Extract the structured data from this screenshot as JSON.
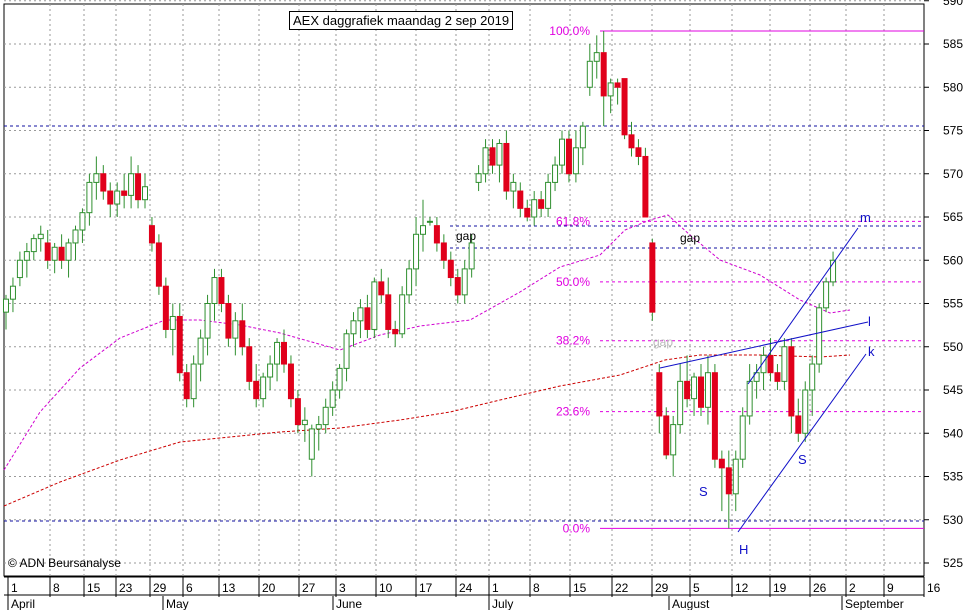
{
  "chart_data": {
    "type": "candlestick",
    "title": "AEX daggrafiek maandag 2 sep 2019",
    "copyright": "© ADN Beursanalyse",
    "ylim": [
      522,
      593
    ],
    "y_ticks": [
      525,
      530,
      535,
      540,
      545,
      550,
      555,
      560,
      565,
      570,
      575,
      580,
      585,
      590
    ],
    "x_ticks": [
      "1",
      "8",
      "15",
      "23",
      "29",
      "6",
      "13",
      "20",
      "27",
      "3",
      "10",
      "17",
      "24",
      "1",
      "8",
      "15",
      "22",
      "29",
      "5",
      "12",
      "19",
      "26",
      "2",
      "9",
      "16"
    ],
    "months": [
      "April",
      "May",
      "June",
      "July",
      "August",
      "September"
    ],
    "candles": [
      {
        "o": 554,
        "h": 556,
        "l": 552,
        "c": 555.5
      },
      {
        "o": 555.5,
        "h": 558,
        "l": 554,
        "c": 557
      },
      {
        "o": 558,
        "h": 561,
        "l": 557,
        "c": 560
      },
      {
        "o": 560,
        "h": 562,
        "l": 558,
        "c": 561
      },
      {
        "o": 561,
        "h": 563,
        "l": 560,
        "c": 562.5
      },
      {
        "o": 562.5,
        "h": 564,
        "l": 561,
        "c": 563
      },
      {
        "o": 562,
        "h": 563.5,
        "l": 559,
        "c": 560
      },
      {
        "o": 560,
        "h": 562,
        "l": 558.5,
        "c": 561.5
      },
      {
        "o": 561.5,
        "h": 563,
        "l": 559,
        "c": 560
      },
      {
        "o": 560,
        "h": 562.5,
        "l": 558,
        "c": 562
      },
      {
        "o": 562,
        "h": 564,
        "l": 560,
        "c": 563.5
      },
      {
        "o": 563.5,
        "h": 566,
        "l": 562,
        "c": 565.5
      },
      {
        "o": 565.5,
        "h": 570,
        "l": 564,
        "c": 569
      },
      {
        "o": 569,
        "h": 572,
        "l": 567,
        "c": 570
      },
      {
        "o": 570,
        "h": 571,
        "l": 567,
        "c": 568
      },
      {
        "o": 568,
        "h": 569,
        "l": 565,
        "c": 566.5
      },
      {
        "o": 566.5,
        "h": 569,
        "l": 565,
        "c": 568
      },
      {
        "o": 568,
        "h": 570,
        "l": 566,
        "c": 567.5
      },
      {
        "o": 567.5,
        "h": 572,
        "l": 566,
        "c": 570
      },
      {
        "o": 570,
        "h": 571,
        "l": 566,
        "c": 567
      },
      {
        "o": 567,
        "h": 570,
        "l": 566,
        "c": 568.5
      },
      {
        "o": 564,
        "h": 565,
        "l": 561,
        "c": 562
      },
      {
        "o": 562,
        "h": 563,
        "l": 556,
        "c": 557
      },
      {
        "o": 557,
        "h": 558,
        "l": 551,
        "c": 552
      },
      {
        "o": 552,
        "h": 555,
        "l": 549,
        "c": 553.5
      },
      {
        "o": 553.5,
        "h": 555,
        "l": 546,
        "c": 547
      },
      {
        "o": 547,
        "h": 548,
        "l": 543,
        "c": 544
      },
      {
        "o": 544,
        "h": 549,
        "l": 543,
        "c": 548
      },
      {
        "o": 548,
        "h": 552,
        "l": 546,
        "c": 551
      },
      {
        "o": 551,
        "h": 556,
        "l": 549,
        "c": 555
      },
      {
        "o": 555,
        "h": 559,
        "l": 553,
        "c": 558
      },
      {
        "o": 558,
        "h": 559,
        "l": 554,
        "c": 555
      },
      {
        "o": 555,
        "h": 556,
        "l": 550,
        "c": 551
      },
      {
        "o": 551,
        "h": 554,
        "l": 549,
        "c": 553
      },
      {
        "o": 553,
        "h": 555,
        "l": 549,
        "c": 550
      },
      {
        "o": 550,
        "h": 551,
        "l": 545,
        "c": 546
      },
      {
        "o": 546,
        "h": 548,
        "l": 543,
        "c": 544
      },
      {
        "o": 544,
        "h": 547,
        "l": 543,
        "c": 546.5
      },
      {
        "o": 546.5,
        "h": 549,
        "l": 545,
        "c": 548
      },
      {
        "o": 548,
        "h": 551,
        "l": 546,
        "c": 550.5
      },
      {
        "o": 550.5,
        "h": 552,
        "l": 547,
        "c": 548
      },
      {
        "o": 548,
        "h": 549,
        "l": 543,
        "c": 544
      },
      {
        "o": 544,
        "h": 545,
        "l": 540,
        "c": 541
      },
      {
        "o": 541,
        "h": 543,
        "l": 539,
        "c": 541.5
      },
      {
        "o": 537,
        "h": 541,
        "l": 535,
        "c": 540.5
      },
      {
        "o": 540.5,
        "h": 542,
        "l": 538,
        "c": 541
      },
      {
        "o": 541,
        "h": 544,
        "l": 540,
        "c": 543
      },
      {
        "o": 543,
        "h": 546,
        "l": 542,
        "c": 545
      },
      {
        "o": 545,
        "h": 548,
        "l": 544,
        "c": 547.5
      },
      {
        "o": 547.5,
        "h": 552,
        "l": 546,
        "c": 551.5
      },
      {
        "o": 551.5,
        "h": 554,
        "l": 550,
        "c": 553
      },
      {
        "o": 553,
        "h": 555.5,
        "l": 551,
        "c": 554.5
      },
      {
        "o": 554.5,
        "h": 556,
        "l": 551,
        "c": 552
      },
      {
        "o": 552,
        "h": 558,
        "l": 551,
        "c": 557.5
      },
      {
        "o": 557.5,
        "h": 559,
        "l": 555,
        "c": 556
      },
      {
        "o": 556,
        "h": 558,
        "l": 551,
        "c": 552
      },
      {
        "o": 552,
        "h": 553,
        "l": 550,
        "c": 551.5
      },
      {
        "o": 551.5,
        "h": 557,
        "l": 551,
        "c": 556
      },
      {
        "o": 556,
        "h": 560,
        "l": 555,
        "c": 559
      },
      {
        "o": 559,
        "h": 565,
        "l": 557,
        "c": 563
      },
      {
        "o": 563,
        "h": 567,
        "l": 561,
        "c": 564
      },
      {
        "o": 564.5,
        "h": 565,
        "l": 564,
        "c": 564.5
      },
      {
        "o": 564,
        "h": 565,
        "l": 561,
        "c": 562
      },
      {
        "o": 562,
        "h": 563,
        "l": 559,
        "c": 560
      },
      {
        "o": 560,
        "h": 561,
        "l": 557,
        "c": 558
      },
      {
        "o": 558,
        "h": 559,
        "l": 555,
        "c": 556
      },
      {
        "o": 556,
        "h": 560,
        "l": 555,
        "c": 559
      },
      {
        "o": 559,
        "h": 563,
        "l": 558,
        "c": 562
      },
      {
        "o": 569,
        "h": 571,
        "l": 568,
        "c": 570
      },
      {
        "o": 570,
        "h": 574,
        "l": 569,
        "c": 573
      },
      {
        "o": 573,
        "h": 574,
        "l": 570,
        "c": 571
      },
      {
        "o": 571,
        "h": 574,
        "l": 569,
        "c": 573.5
      },
      {
        "o": 573.5,
        "h": 575,
        "l": 567,
        "c": 568
      },
      {
        "o": 568,
        "h": 570,
        "l": 566,
        "c": 569
      },
      {
        "o": 568,
        "h": 569,
        "l": 565,
        "c": 566
      },
      {
        "o": 566,
        "h": 567,
        "l": 564.5,
        "c": 565
      },
      {
        "o": 565,
        "h": 568,
        "l": 564,
        "c": 567
      },
      {
        "o": 567,
        "h": 568,
        "l": 565,
        "c": 566
      },
      {
        "o": 566,
        "h": 570,
        "l": 565,
        "c": 569
      },
      {
        "o": 569,
        "h": 572,
        "l": 568,
        "c": 571
      },
      {
        "o": 571,
        "h": 575,
        "l": 570,
        "c": 574
      },
      {
        "o": 574,
        "h": 575,
        "l": 569,
        "c": 570
      },
      {
        "o": 570,
        "h": 575,
        "l": 569,
        "c": 573
      },
      {
        "o": 573,
        "h": 576,
        "l": 571,
        "c": 575.5
      },
      {
        "o": 580,
        "h": 585,
        "l": 579,
        "c": 583
      },
      {
        "o": 583,
        "h": 586,
        "l": 581,
        "c": 584
      },
      {
        "o": 584,
        "h": 586.5,
        "l": 575.5,
        "c": 579
      },
      {
        "o": 579,
        "h": 581,
        "l": 577,
        "c": 580.5
      },
      {
        "o": 580.5,
        "h": 581,
        "l": 578,
        "c": 580
      },
      {
        "o": 581,
        "h": 581,
        "l": 574,
        "c": 574.5
      },
      {
        "o": 574.5,
        "h": 576,
        "l": 572,
        "c": 573
      },
      {
        "o": 573,
        "h": 574,
        "l": 571,
        "c": 572
      },
      {
        "o": 572,
        "h": 573,
        "l": 565,
        "c": 565
      },
      {
        "o": 562,
        "h": 562.5,
        "l": 553,
        "c": 554
      },
      {
        "o": 547,
        "h": 548,
        "l": 540,
        "c": 542
      },
      {
        "o": 542,
        "h": 543,
        "l": 537,
        "c": 537.5
      },
      {
        "o": 537.5,
        "h": 542,
        "l": 535,
        "c": 541
      },
      {
        "o": 541,
        "h": 548,
        "l": 540,
        "c": 546
      },
      {
        "o": 546,
        "h": 549,
        "l": 543,
        "c": 544
      },
      {
        "o": 544,
        "h": 547,
        "l": 542,
        "c": 546.5
      },
      {
        "o": 546.5,
        "h": 548,
        "l": 542,
        "c": 543
      },
      {
        "o": 543,
        "h": 549,
        "l": 541,
        "c": 547
      },
      {
        "o": 547,
        "h": 548,
        "l": 536,
        "c": 537
      },
      {
        "o": 537,
        "h": 538,
        "l": 531,
        "c": 536
      },
      {
        "o": 536,
        "h": 538,
        "l": 529,
        "c": 533
      },
      {
        "o": 533,
        "h": 538,
        "l": 531,
        "c": 537
      },
      {
        "o": 537,
        "h": 543,
        "l": 536,
        "c": 542
      },
      {
        "o": 542,
        "h": 548,
        "l": 541,
        "c": 546
      },
      {
        "o": 546,
        "h": 548,
        "l": 544,
        "c": 547
      },
      {
        "o": 547,
        "h": 550,
        "l": 545,
        "c": 549
      },
      {
        "o": 549,
        "h": 551,
        "l": 546,
        "c": 547
      },
      {
        "o": 547,
        "h": 548,
        "l": 545,
        "c": 546
      },
      {
        "o": 546,
        "h": 551,
        "l": 545,
        "c": 550
      },
      {
        "o": 550,
        "h": 551,
        "l": 540,
        "c": 542
      },
      {
        "o": 542,
        "h": 544,
        "l": 539,
        "c": 540
      },
      {
        "o": 540,
        "h": 546,
        "l": 539,
        "c": 545
      },
      {
        "o": 545,
        "h": 549,
        "l": 542,
        "c": 548
      },
      {
        "o": 548,
        "h": 555,
        "l": 547,
        "c": 554.5
      },
      {
        "o": 554.5,
        "h": 558,
        "l": 554,
        "c": 557.5
      },
      {
        "o": 557.5,
        "h": 561,
        "l": 557,
        "c": 560
      }
    ],
    "fibonacci": [
      {
        "label": "100.0%",
        "value": 586.5
      },
      {
        "label": "61.8%",
        "value": 564.5
      },
      {
        "label": "50.0%",
        "value": 557.5
      },
      {
        "label": "38.2%",
        "value": 550.7
      },
      {
        "label": "23.6%",
        "value": 542.5
      },
      {
        "label": "0.0%",
        "value": 529
      }
    ],
    "annotations": {
      "gap1": "gap",
      "gap2": "gap",
      "gap3": "gap",
      "s1": "S",
      "s2": "S",
      "h": "H",
      "m": "m",
      "l": "l",
      "k": "k"
    },
    "colors": {
      "up": "#ffffff",
      "down": "#e0001b",
      "outline": "#2f8f2f",
      "fib": "#e000e0",
      "ma": "#cc0000",
      "trend": "#1010c8",
      "grid": "#9a9a9a"
    }
  }
}
